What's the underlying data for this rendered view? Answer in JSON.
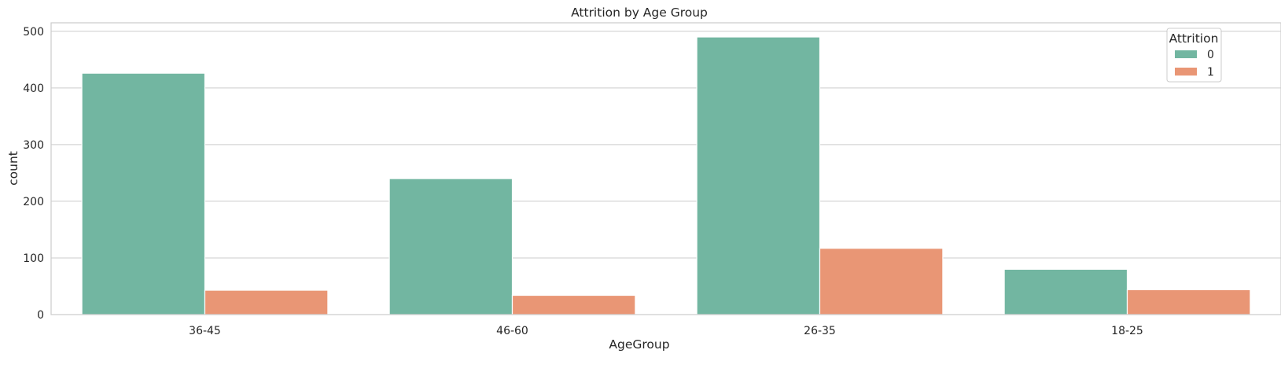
{
  "chart_data": {
    "type": "bar",
    "title": "Attrition by Age Group",
    "xlabel": "AgeGroup",
    "ylabel": "count",
    "categories": [
      "36-45",
      "46-60",
      "26-35",
      "18-25"
    ],
    "series": [
      {
        "name": "0",
        "color": "#72b6a1",
        "values": [
          426,
          240,
          490,
          80
        ]
      },
      {
        "name": "1",
        "color": "#e99675",
        "values": [
          43,
          34,
          117,
          44
        ]
      }
    ],
    "ylim": [
      0,
      515
    ],
    "yticks": [
      0,
      100,
      200,
      300,
      400,
      500
    ],
    "legend": {
      "title": "Attrition",
      "placement": "top-right"
    },
    "grid": "horizontal"
  }
}
